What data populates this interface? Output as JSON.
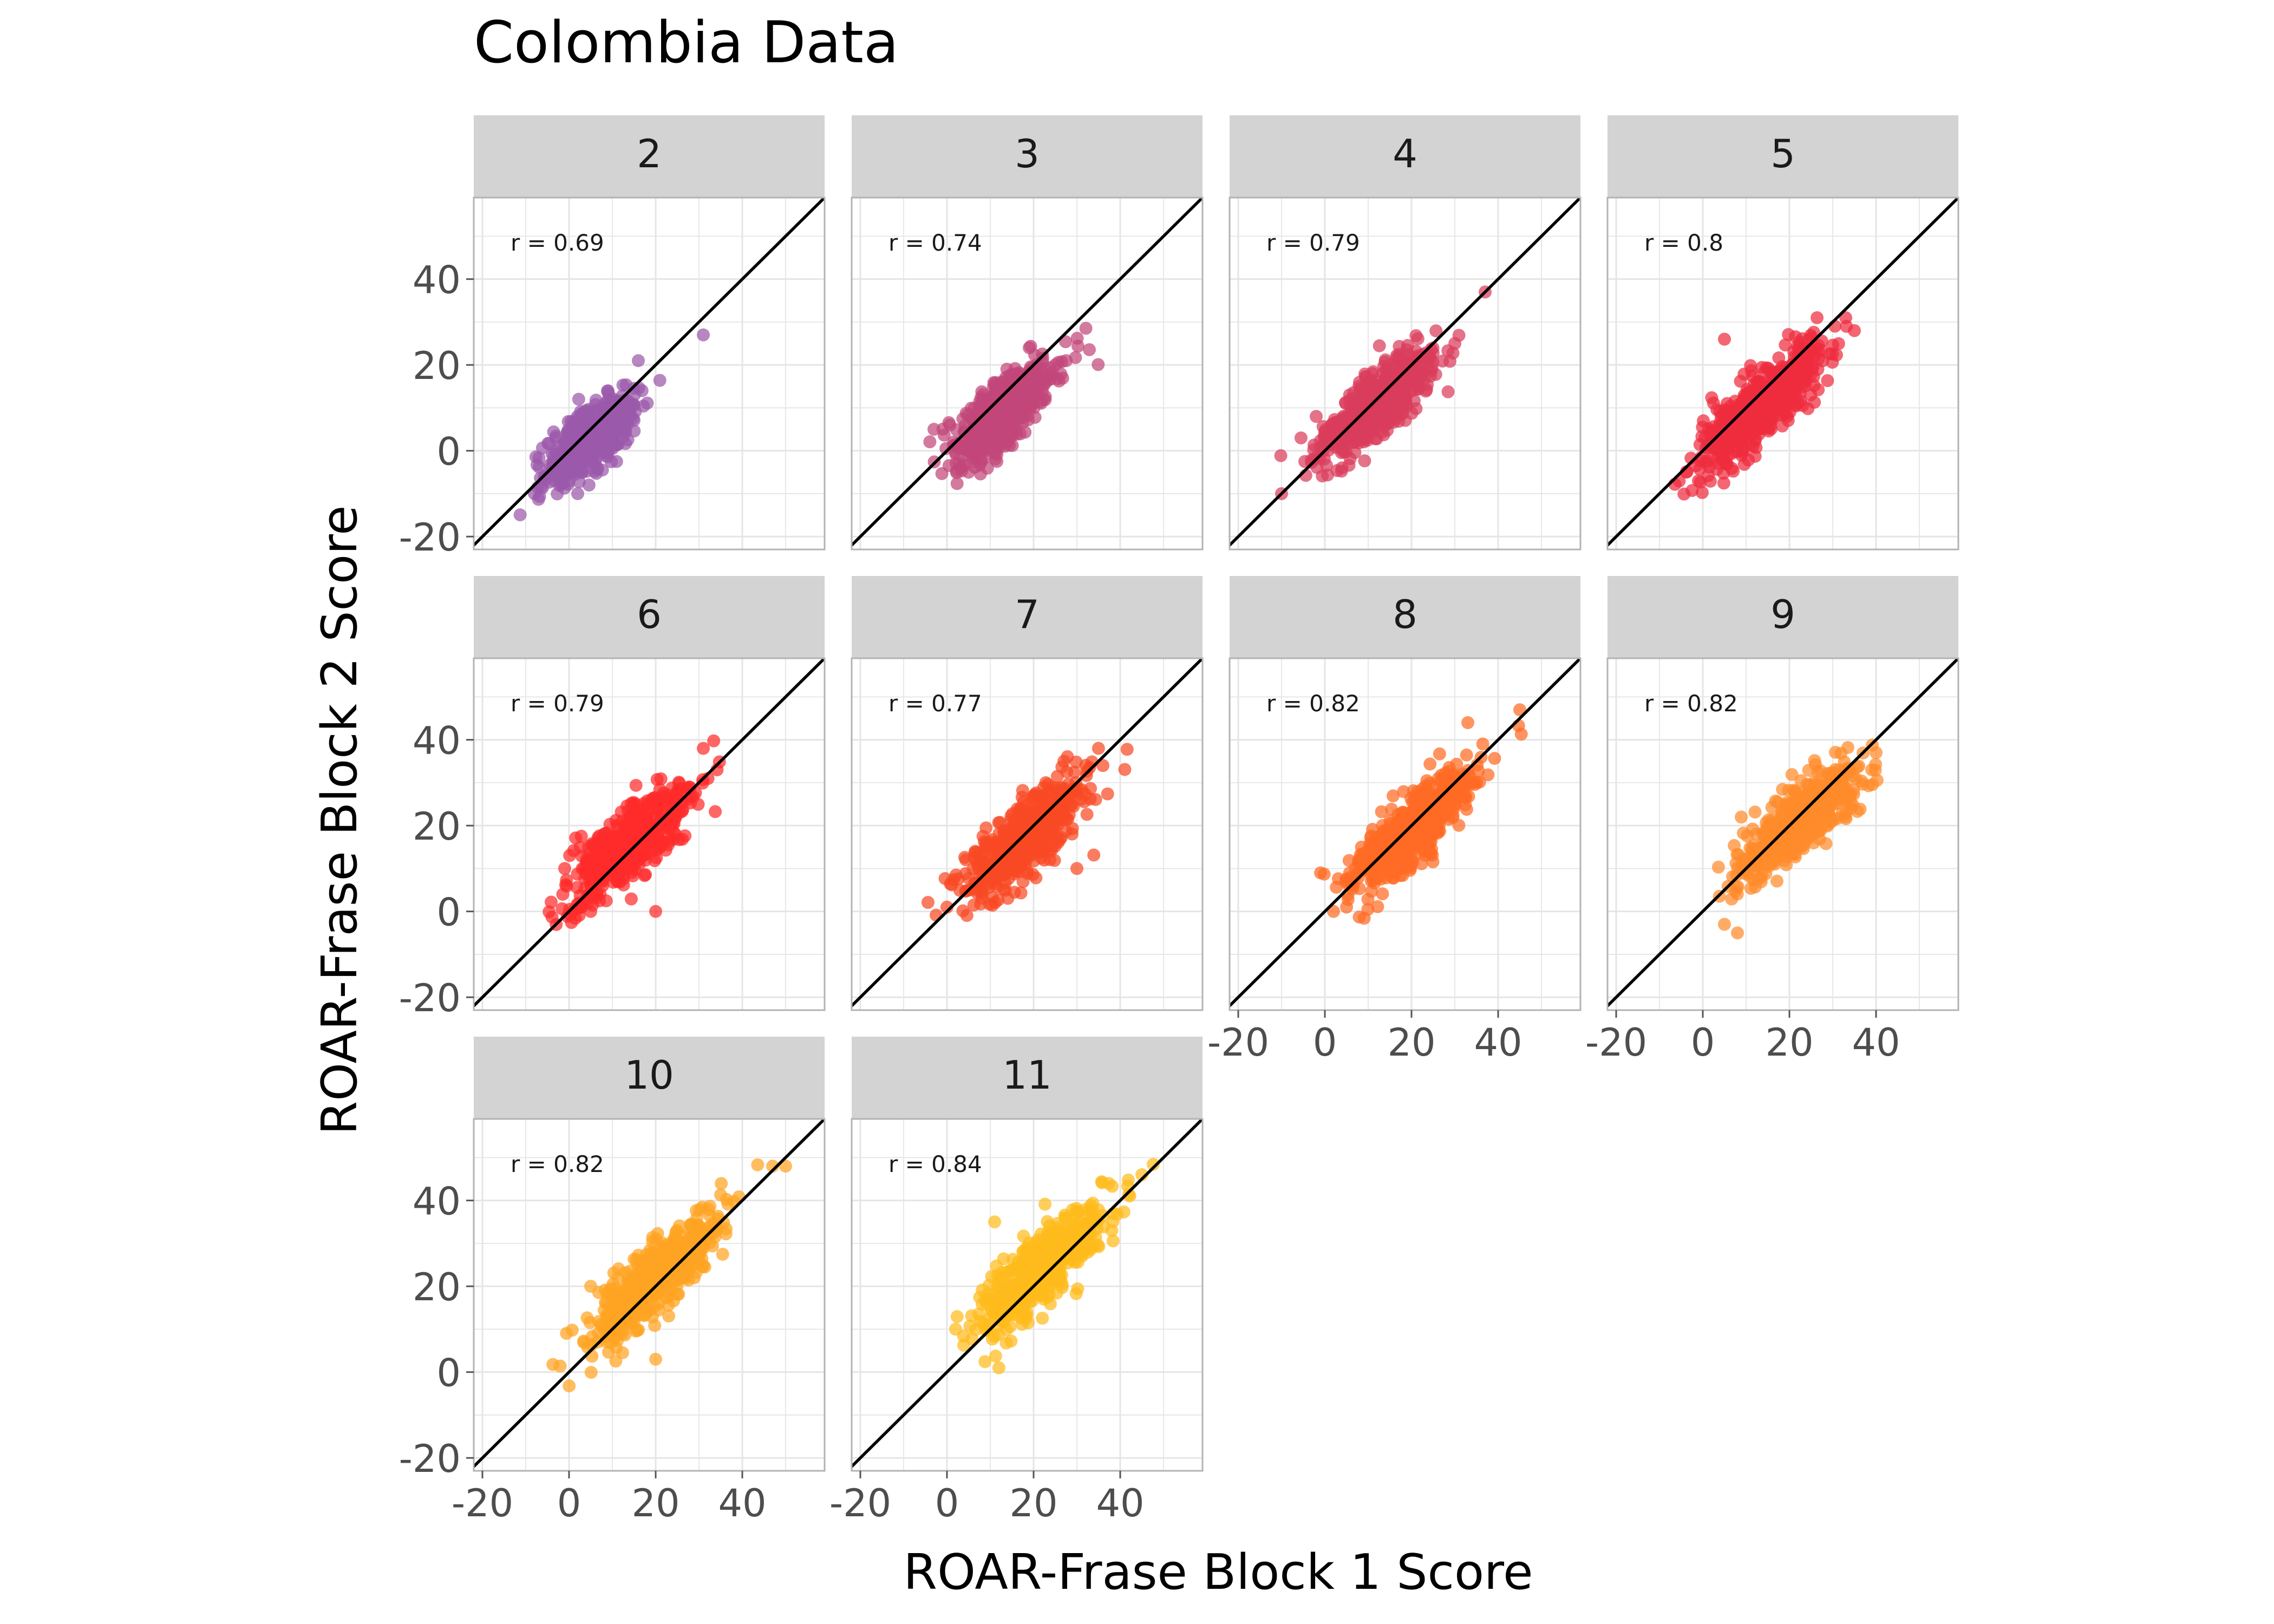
{
  "figure": {
    "title": "Colombia Data",
    "xlabel": "ROAR-Frase Block 1 Score",
    "ylabel": "ROAR-Frase Block 2 Score"
  },
  "chart_data": {
    "type": "scatter",
    "title": "Colombia Data",
    "xlabel": "ROAR-Frase Block 1 Score",
    "ylabel": "ROAR-Frase Block 2 Score",
    "xlim": [
      -22,
      59
    ],
    "ylim": [
      -23,
      59
    ],
    "x_ticks": [
      -20,
      0,
      20,
      40
    ],
    "y_ticks": [
      -20,
      0,
      20,
      40
    ],
    "x_tick_labels": [
      "-20",
      "0",
      "20",
      "40"
    ],
    "y_tick_labels": [
      "-20",
      "0",
      "20",
      "40"
    ],
    "grid": true,
    "reference_line": "y = x",
    "facets": [
      {
        "label": "2",
        "r_label": "r =  0.69",
        "r": 0.69,
        "color": "#9b59ab",
        "center": [
          5,
          3
        ],
        "spread": [
          5,
          5
        ],
        "extremes": [
          [
            31,
            27
          ],
          [
            -8,
            -10
          ],
          [
            2,
            -10
          ],
          [
            16,
            21
          ]
        ]
      },
      {
        "label": "3",
        "r_label": "r =  0.74",
        "r": 0.74,
        "color": "#c2477a",
        "center": [
          13,
          9
        ],
        "spread": [
          6,
          6
        ],
        "extremes": [
          [
            25,
            20
          ],
          [
            -3,
            5
          ],
          [
            5,
            -5
          ],
          [
            19,
            24
          ]
        ]
      },
      {
        "label": "4",
        "r_label": "r =  0.79",
        "r": 0.79,
        "color": "#d93d5c",
        "center": [
          12,
          11
        ],
        "spread": [
          6.5,
          6.5
        ],
        "extremes": [
          [
            -10,
            -10
          ],
          [
            37,
            37
          ],
          [
            30,
            25
          ],
          [
            -2,
            8
          ]
        ]
      },
      {
        "label": "5",
        "r_label": "r =  0.8",
        "r": 0.8,
        "color": "#ee2d3f",
        "center": [
          14,
          11
        ],
        "spread": [
          7,
          7
        ],
        "extremes": [
          [
            -1,
            -7
          ],
          [
            35,
            28
          ],
          [
            33,
            31
          ],
          [
            5,
            26
          ]
        ]
      },
      {
        "label": "6",
        "r_label": "r =  0.79",
        "r": 0.79,
        "color": "#ff2b2b",
        "center": [
          14,
          16
        ],
        "spread": [
          7,
          7
        ],
        "extremes": [
          [
            31,
            38
          ],
          [
            5,
            0
          ],
          [
            20,
            0
          ],
          [
            -1,
            10
          ]
        ]
      },
      {
        "label": "7",
        "r_label": "r =  0.77",
        "r": 0.77,
        "color": "#f84a24",
        "center": [
          18,
          17
        ],
        "spread": [
          7,
          7
        ],
        "extremes": [
          [
            36,
            34
          ],
          [
            0,
            1
          ],
          [
            27,
            35
          ],
          [
            30,
            10
          ]
        ]
      },
      {
        "label": "8",
        "r_label": "r =  0.82",
        "r": 0.82,
        "color": "#ff6b24",
        "center": [
          20,
          19
        ],
        "spread": [
          7,
          7
        ],
        "extremes": [
          [
            45,
            47
          ],
          [
            2,
            0
          ],
          [
            33,
            44
          ],
          [
            -1,
            9
          ]
        ]
      },
      {
        "label": "9",
        "r_label": "r =  0.82",
        "r": 0.82,
        "color": "#ff8a2b",
        "center": [
          22,
          21
        ],
        "spread": [
          7,
          7
        ],
        "extremes": [
          [
            40,
            37
          ],
          [
            5,
            -3
          ],
          [
            8,
            -5
          ],
          [
            39,
            33
          ]
        ]
      },
      {
        "label": "10",
        "r_label": "r =  0.82",
        "r": 0.82,
        "color": "#ffa322",
        "center": [
          20,
          22
        ],
        "spread": [
          7.5,
          7.5
        ],
        "extremes": [
          [
            50,
            48
          ],
          [
            47,
            48
          ],
          [
            20,
            3
          ],
          [
            5,
            20
          ]
        ]
      },
      {
        "label": "11",
        "r_label": "r =  0.84",
        "r": 0.84,
        "color": "#ffbb1c",
        "center": [
          22,
          24
        ],
        "spread": [
          7.5,
          7.5
        ],
        "extremes": [
          [
            45,
            46
          ],
          [
            12,
            1
          ],
          [
            2,
            10
          ],
          [
            11,
            35
          ]
        ]
      }
    ]
  }
}
